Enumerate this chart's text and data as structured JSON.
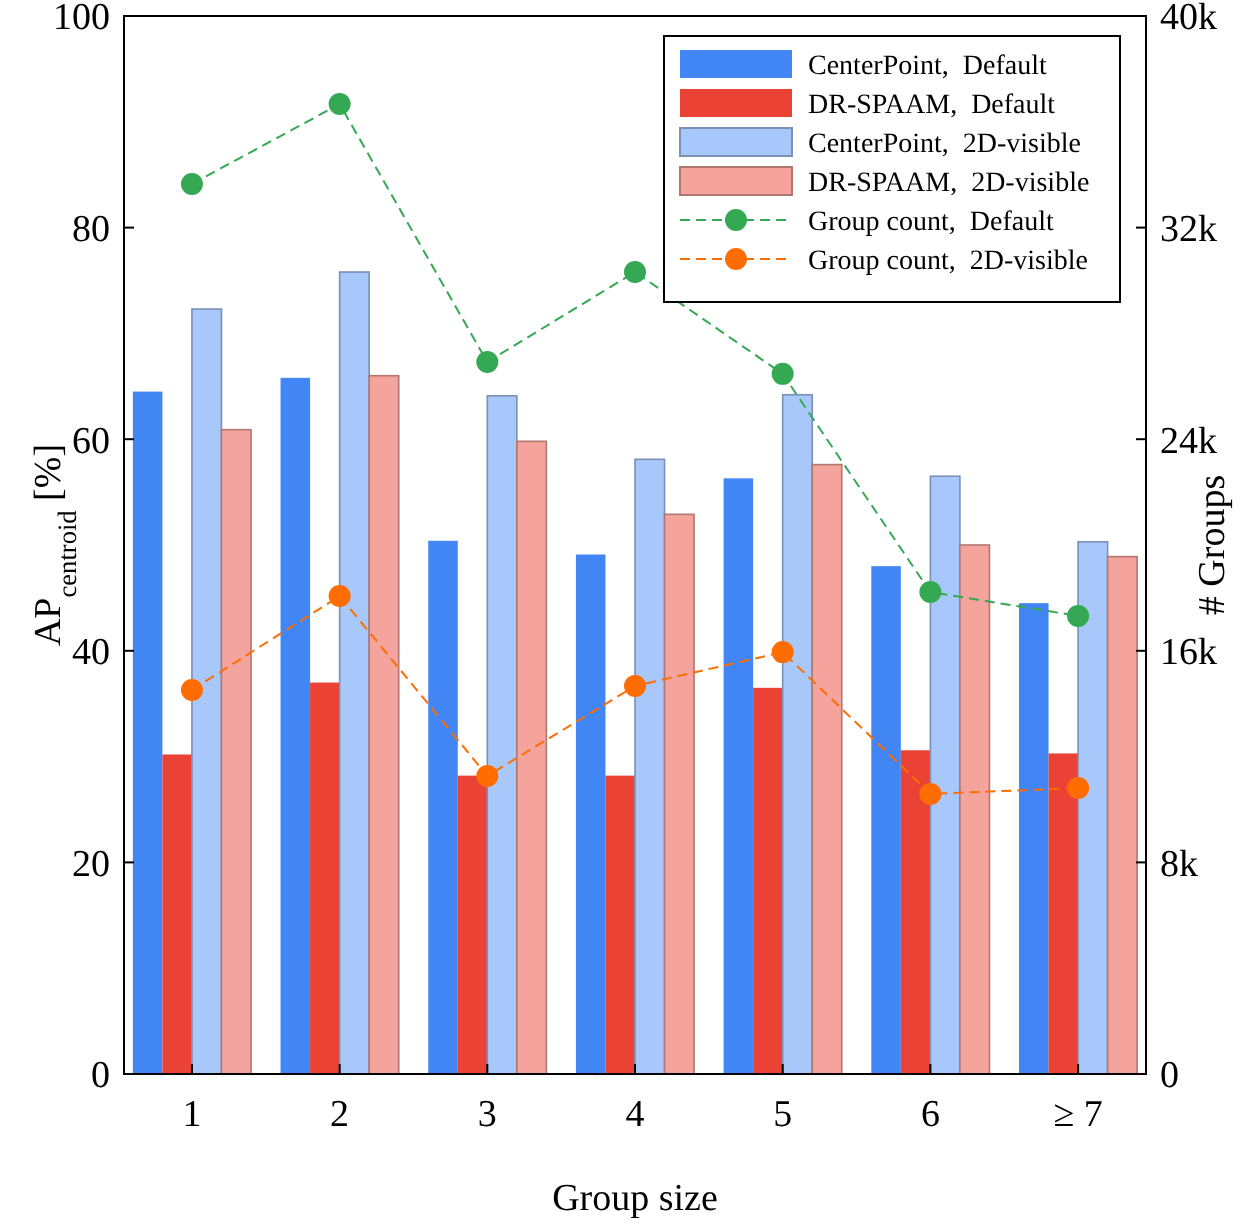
{
  "chart_data": {
    "type": "bar",
    "xlabel": "Group size",
    "ylabel": "AP$_{centroid}$ [%]",
    "y2label": "# Groups",
    "categories": [
      "1",
      "2",
      "3",
      "4",
      "5",
      "6",
      "≥ 7"
    ],
    "ylim": [
      0,
      100
    ],
    "yticks": [
      0,
      20,
      40,
      60,
      80,
      100
    ],
    "y2lim": [
      0,
      40000
    ],
    "y2ticks": [
      {
        "value": 0,
        "label": "0"
      },
      {
        "value": 8000,
        "label": "8k"
      },
      {
        "value": 16000,
        "label": "16k"
      },
      {
        "value": 24000,
        "label": "24k"
      },
      {
        "value": 32000,
        "label": "32k"
      },
      {
        "value": 40000,
        "label": "40k"
      }
    ],
    "legend": "top right",
    "series": [
      {
        "name": "CenterPoint,  Default",
        "color": "#4285f4",
        "values": [
          64.5,
          65.8,
          50.4,
          49.1,
          56.3,
          48.0,
          44.5
        ]
      },
      {
        "name": "DR-SPAAM,  Default",
        "color": "#ea4335",
        "values": [
          30.2,
          37.0,
          28.2,
          28.2,
          36.5,
          30.6,
          30.3
        ]
      },
      {
        "name": "CenterPoint,  2D-visible",
        "color": "#a8c7fa",
        "values": [
          72.3,
          75.8,
          64.1,
          58.1,
          64.2,
          56.5,
          50.3
        ]
      },
      {
        "name": "DR-SPAAM,  2D-visible",
        "color": "#f4a49c",
        "values": [
          60.9,
          66.0,
          59.8,
          52.9,
          57.6,
          50.0,
          48.9
        ]
      },
      {
        "name": "Group count,  Default",
        "type": "line",
        "axis": "y2",
        "marker": "circle",
        "line_style": "dashed",
        "color": "#34a853",
        "values": [
          33650,
          36670,
          26920,
          30320,
          26470,
          18220,
          17320
        ]
      },
      {
        "name": "Group count,  2D-visible",
        "type": "line",
        "axis": "y2",
        "marker": "circle",
        "line_style": "dashed",
        "color": "#ff6d01",
        "values": [
          14520,
          18070,
          11270,
          14670,
          15950,
          10590,
          10810
        ]
      }
    ]
  }
}
